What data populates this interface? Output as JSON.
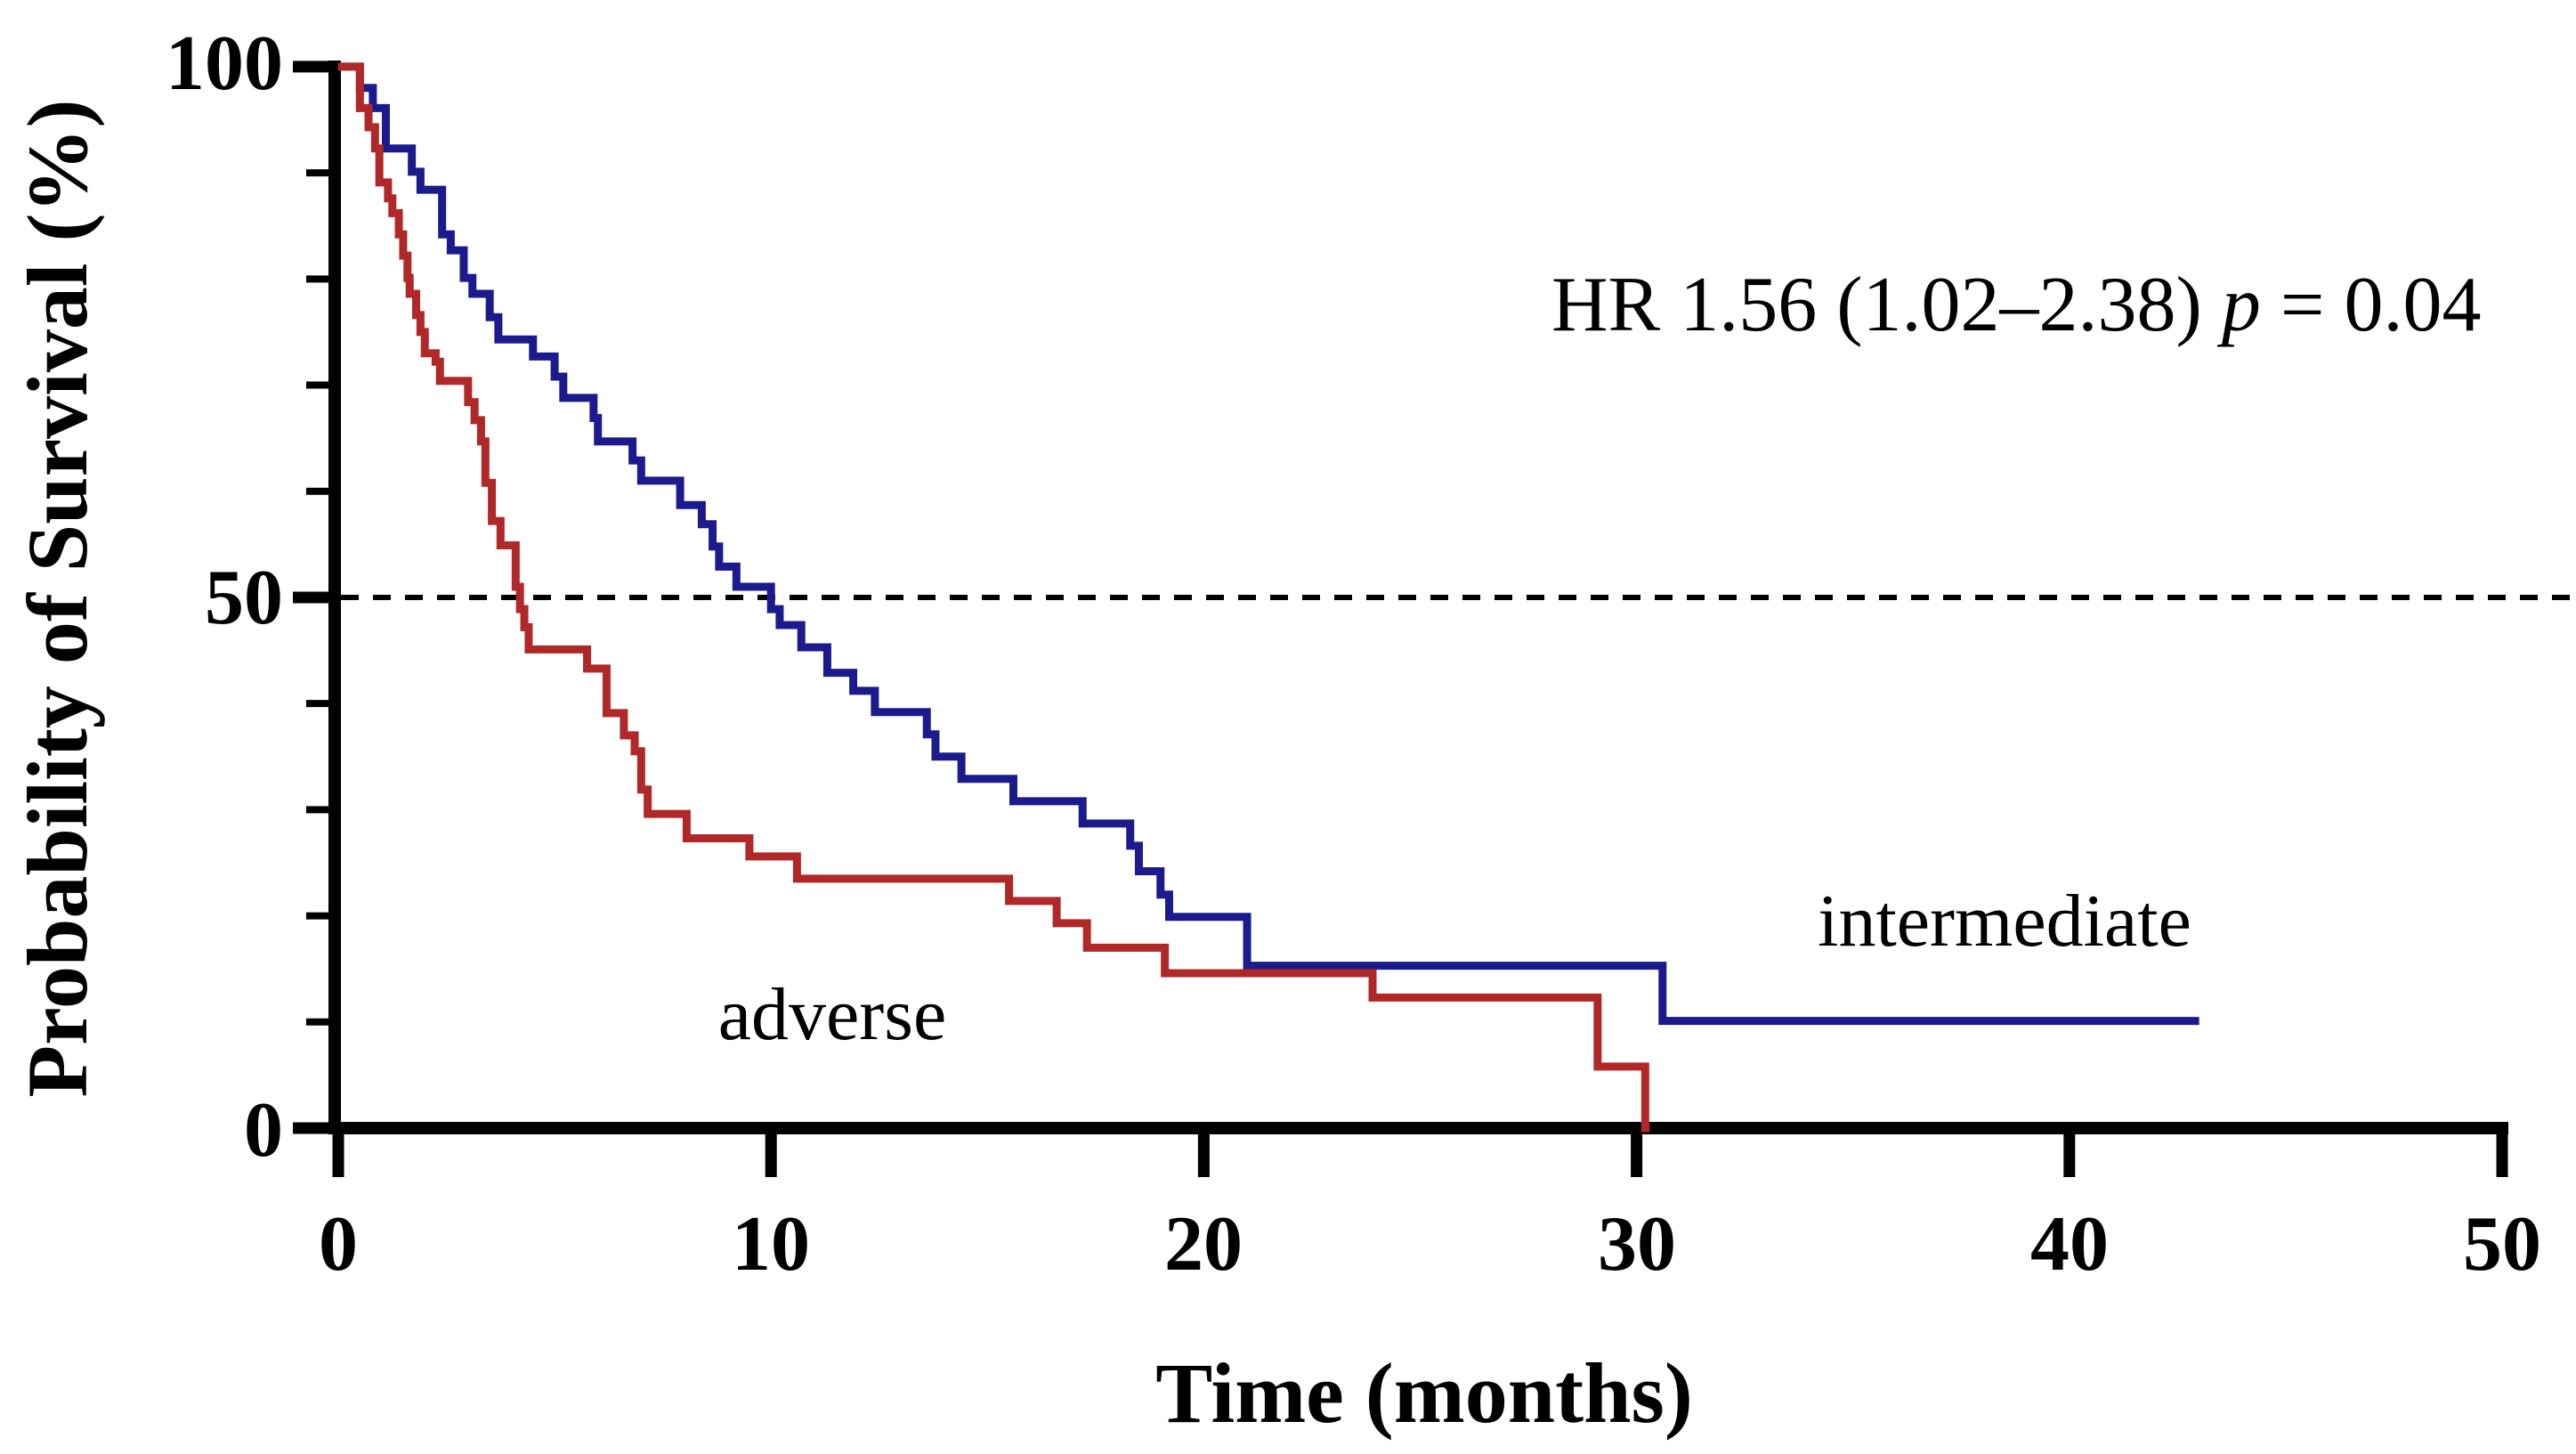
{
  "figure": {
    "background_color": "#ffffff",
    "axis_color": "#000000",
    "annotation": {
      "prefix": "HR 1.56 (1.02–2.38) ",
      "p_symbol": "p",
      "suffix": " = 0.04",
      "full_text": "HR 1.56 (1.02–2.38) p = 0.04"
    }
  },
  "axes": {
    "x_label": "Time (months)",
    "y_label": "Probability of Survival (%)",
    "x_tick_labels": [
      "0",
      "10",
      "20",
      "30",
      "40",
      "50"
    ],
    "y_tick_labels": [
      "100",
      "50",
      "0"
    ]
  },
  "chart_data": {
    "type": "line",
    "subtype": "kaplan-meier-step",
    "title": "",
    "xlabel": "Time (months)",
    "ylabel": "Probability of Survival (%)",
    "xlim": [
      0,
      50
    ],
    "ylim": [
      0,
      100
    ],
    "grid": false,
    "x_ticks": [
      0,
      10,
      20,
      30,
      40,
      50
    ],
    "y_major_ticks": [
      100,
      50,
      0
    ],
    "y_minor_ticks": [
      90,
      80,
      70,
      60,
      40,
      30,
      20,
      10
    ],
    "reference_line": {
      "y": 50,
      "style": "dashed",
      "color": "#000000"
    },
    "annotation": "HR 1.56 (1.02–2.38) p = 0.04",
    "legend_position": "labels-on-chart",
    "series": [
      {
        "name": "intermediate",
        "color": "#1b1b8e",
        "end_time": 43.0,
        "points": [
          [
            0,
            100
          ],
          [
            0.5,
            98.0
          ],
          [
            0.8,
            96.1
          ],
          [
            1.1,
            92.3
          ],
          [
            1.7,
            90.1
          ],
          [
            1.9,
            88.4
          ],
          [
            2.4,
            84.2
          ],
          [
            2.6,
            82.7
          ],
          [
            2.9,
            80.1
          ],
          [
            3.1,
            78.6
          ],
          [
            3.5,
            76.4
          ],
          [
            3.7,
            74.3
          ],
          [
            4.5,
            72.7
          ],
          [
            5.0,
            70.8
          ],
          [
            5.2,
            68.8
          ],
          [
            5.9,
            66.9
          ],
          [
            6.0,
            64.7
          ],
          [
            6.8,
            62.9
          ],
          [
            7.0,
            61.0
          ],
          [
            7.9,
            58.7
          ],
          [
            8.4,
            56.9
          ],
          [
            8.65,
            54.8
          ],
          [
            8.8,
            52.9
          ],
          [
            9.2,
            51.0
          ],
          [
            10.0,
            48.9
          ],
          [
            10.2,
            47.4
          ],
          [
            10.7,
            45.3
          ],
          [
            11.3,
            42.9
          ],
          [
            11.9,
            41.2
          ],
          [
            12.4,
            39.2
          ],
          [
            13.6,
            37.1
          ],
          [
            13.8,
            35.0
          ],
          [
            14.4,
            32.9
          ],
          [
            15.6,
            30.8
          ],
          [
            17.2,
            28.7
          ],
          [
            18.3,
            26.6
          ],
          [
            18.5,
            24.2
          ],
          [
            19.0,
            22.0
          ],
          [
            19.2,
            19.9
          ],
          [
            21.0,
            15.3
          ],
          [
            30.6,
            10.1
          ]
        ]
      },
      {
        "name": "adverse",
        "color": "#b02828",
        "end_time": 30.3,
        "points": [
          [
            0,
            100
          ],
          [
            0.5,
            96.1
          ],
          [
            0.7,
            94.3
          ],
          [
            0.85,
            92.3
          ],
          [
            0.95,
            89.1
          ],
          [
            1.15,
            87.6
          ],
          [
            1.25,
            86.2
          ],
          [
            1.4,
            84.2
          ],
          [
            1.5,
            82.2
          ],
          [
            1.6,
            80.1
          ],
          [
            1.65,
            78.6
          ],
          [
            1.8,
            76.6
          ],
          [
            1.9,
            75.0
          ],
          [
            2.0,
            73.0
          ],
          [
            2.25,
            72.2
          ],
          [
            2.35,
            70.4
          ],
          [
            3.0,
            68.4
          ],
          [
            3.15,
            66.7
          ],
          [
            3.3,
            64.7
          ],
          [
            3.4,
            60.8
          ],
          [
            3.55,
            57.2
          ],
          [
            3.75,
            54.9
          ],
          [
            4.1,
            51.0
          ],
          [
            4.2,
            48.9
          ],
          [
            4.3,
            47.2
          ],
          [
            4.4,
            45.1
          ],
          [
            5.75,
            43.3
          ],
          [
            6.2,
            39.1
          ],
          [
            6.6,
            37.0
          ],
          [
            6.85,
            35.5
          ],
          [
            7.0,
            31.9
          ],
          [
            7.15,
            29.6
          ],
          [
            8.05,
            27.3
          ],
          [
            9.5,
            25.6
          ],
          [
            10.6,
            23.5
          ],
          [
            15.5,
            21.4
          ],
          [
            16.6,
            19.3
          ],
          [
            17.3,
            17.0
          ],
          [
            19.1,
            14.6
          ],
          [
            23.9,
            12.3
          ],
          [
            29.1,
            5.8
          ],
          [
            30.2,
            0
          ]
        ]
      }
    ]
  }
}
